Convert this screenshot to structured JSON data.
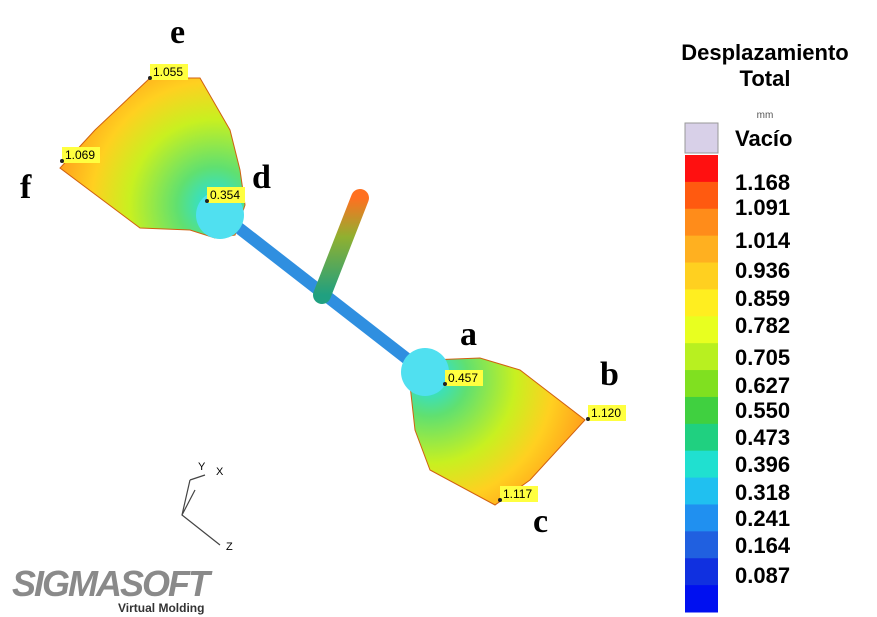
{
  "legend": {
    "title_line1": "Desplazamiento",
    "title_line2": "Total",
    "unit": "mm",
    "empty_label": "Vacío",
    "levels": [
      "1.168",
      "1.091",
      "1.014",
      "0.936",
      "0.859",
      "0.782",
      "0.705",
      "0.627",
      "0.550",
      "0.473",
      "0.396",
      "0.318",
      "0.241",
      "0.164",
      "0.087"
    ]
  },
  "points": [
    {
      "letter": "a",
      "value": "0.457"
    },
    {
      "letter": "b",
      "value": "1.120"
    },
    {
      "letter": "c",
      "value": "1.117"
    },
    {
      "letter": "d",
      "value": "0.354"
    },
    {
      "letter": "e",
      "value": "1.055"
    },
    {
      "letter": "f",
      "value": "1.069"
    }
  ],
  "axes": {
    "y": "Y",
    "x": "X",
    "z": "Z"
  },
  "logo": {
    "name": "SIGMASOFT",
    "tagline": "Virtual Molding"
  }
}
